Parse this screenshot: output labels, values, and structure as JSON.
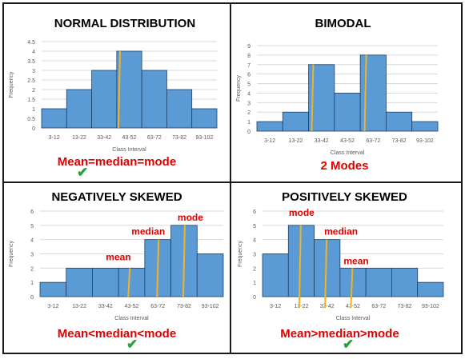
{
  "colors": {
    "bar_fill": "#5b9bd5",
    "bar_stroke": "#1f3f66",
    "marker_line": "#f0b323",
    "annotation_red": "#e00000",
    "axis_text": "#595959",
    "gridline": "#d9d9d9",
    "check_green": "#2e9e3e"
  },
  "panels": [
    {
      "title": "NORMAL DISTRIBUTION",
      "caption": "Mean=median=mode",
      "check_icon": "checkmark-icon"
    },
    {
      "title": "BIMODAL",
      "caption": "2 Modes"
    },
    {
      "title": "NEGATIVELY SKEWED",
      "caption": "Mean<median<mode",
      "check_icon": "checkmark-icon"
    },
    {
      "title": "POSITIVELY SKEWED",
      "caption": "Mean>median>mode",
      "check_icon": "checkmark-icon"
    }
  ],
  "chart_data": [
    {
      "type": "bar",
      "title": "NORMAL DISTRIBUTION",
      "categories": [
        "3-12",
        "13-22",
        "33-42",
        "43-52",
        "63-72",
        "73-82",
        "93-102"
      ],
      "values": [
        1,
        2,
        3,
        4,
        3,
        2,
        1
      ],
      "xlabel": "Class Interval",
      "ylabel": "Frequency",
      "ylim": [
        0,
        4.5
      ],
      "yticks": [
        0,
        0.5,
        1,
        1.5,
        2,
        2.5,
        3,
        3.5,
        4,
        4.5
      ],
      "ytick_labels": [
        "0",
        "0.5",
        "1",
        "1.5",
        "2",
        "2.5",
        "3",
        "3.5",
        "4",
        "4.5"
      ],
      "gridlines": true,
      "markers": [
        {
          "label": "",
          "x_category_index": 3.1,
          "from": 0,
          "to": 4
        }
      ]
    },
    {
      "type": "bar",
      "title": "BIMODAL",
      "categories": [
        "3-12",
        "13-22",
        "33-42",
        "43-52",
        "63-72",
        "73-82",
        "93-102"
      ],
      "values": [
        1,
        2,
        7,
        4,
        8,
        2,
        1
      ],
      "xlabel": "Class Interval",
      "ylabel": "Frequency",
      "ylim": [
        0,
        9
      ],
      "yticks": [
        0,
        1,
        2,
        3,
        4,
        5,
        6,
        7,
        8,
        9
      ],
      "ytick_labels": [
        "0",
        "1",
        "2",
        "3",
        "4",
        "5",
        "6",
        "7",
        "8",
        "9"
      ],
      "gridlines": true,
      "markers": [
        {
          "label": "",
          "x_category_index": 2.15,
          "from": 0,
          "to": 7
        },
        {
          "label": "",
          "x_category_index": 4.2,
          "from": 0,
          "to": 8
        }
      ]
    },
    {
      "type": "bar",
      "title": "NEGATIVELY SKEWED",
      "categories": [
        "3-12",
        "13-22",
        "33-42",
        "43-52",
        "63-72",
        "73-82",
        "93-102"
      ],
      "values": [
        1,
        2,
        2,
        2,
        4,
        5,
        3
      ],
      "xlabel": "Class Interval",
      "ylabel": "Frequency",
      "ylim": [
        0,
        6
      ],
      "yticks": [
        0,
        1,
        2,
        3,
        4,
        5,
        6
      ],
      "ytick_labels": [
        "0",
        "1",
        "2",
        "3",
        "4",
        "5",
        "6"
      ],
      "gridlines": true,
      "markers": [
        {
          "label": "mean",
          "x_category_index": 3.4,
          "from": 0,
          "to": 2
        },
        {
          "label": "median",
          "x_category_index": 4.5,
          "from": 0,
          "to": 4
        },
        {
          "label": "mode",
          "x_category_index": 5.5,
          "from": 0,
          "to": 5
        }
      ]
    },
    {
      "type": "bar",
      "title": "POSITIVELY SKEWED",
      "categories": [
        "3-12",
        "13-22",
        "33-42",
        "43-52",
        "63-72",
        "73-82",
        "93-102"
      ],
      "values": [
        3,
        5,
        4,
        2,
        2,
        2,
        1
      ],
      "xlabel": "Class Interval",
      "ylabel": "Frequency",
      "ylim": [
        0,
        6
      ],
      "yticks": [
        0,
        1,
        2,
        3,
        4,
        5,
        6
      ],
      "ytick_labels": [
        "0",
        "1",
        "2",
        "3",
        "4",
        "5",
        "6"
      ],
      "gridlines": true,
      "markers": [
        {
          "label": "mode",
          "x_category_index": 1.45,
          "from": -0.8,
          "to": 5
        },
        {
          "label": "median",
          "x_category_index": 2.45,
          "from": -0.8,
          "to": 4
        },
        {
          "label": "mean",
          "x_category_index": 3.45,
          "from": -0.8,
          "to": 2
        }
      ]
    }
  ]
}
